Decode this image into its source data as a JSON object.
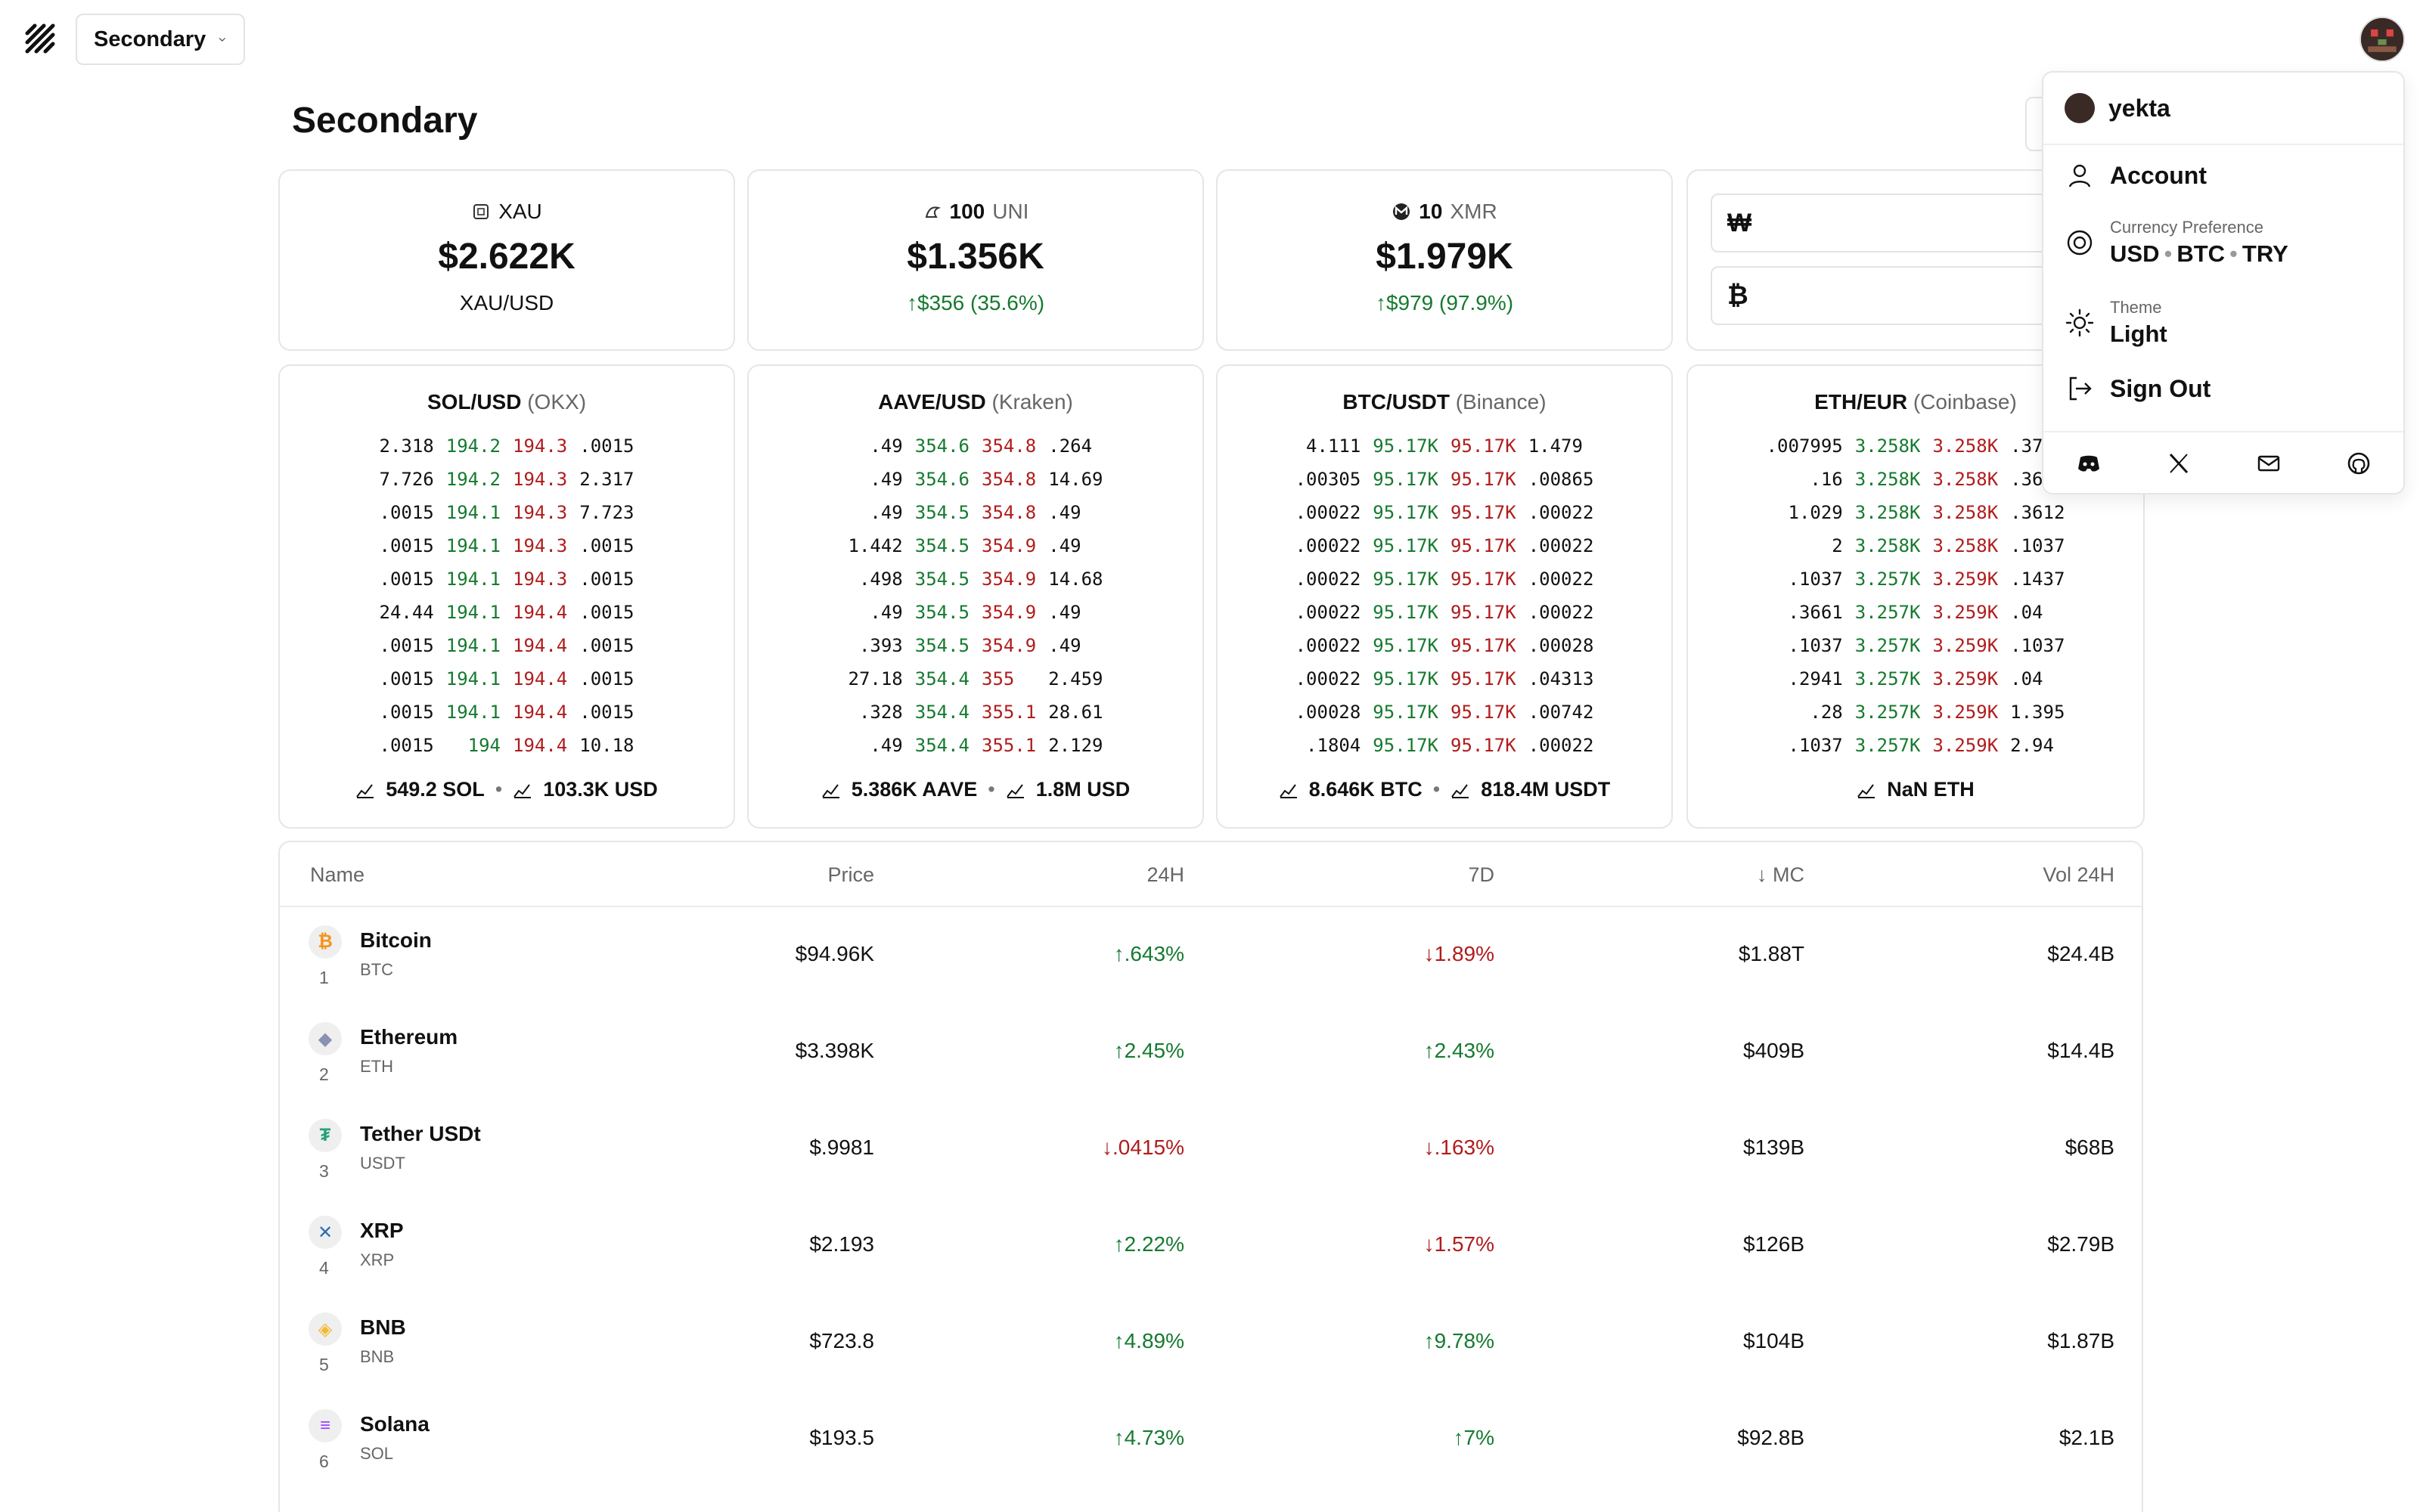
{
  "header": {
    "workspace": "Secondary"
  },
  "page": {
    "title": "Secondary"
  },
  "summary": [
    {
      "amount": "",
      "asset": "XAU",
      "value": "$2.622K",
      "sub": "XAU/USD",
      "change": "",
      "icon": "gold-icon"
    },
    {
      "amount": "100",
      "asset": "UNI",
      "value": "$1.356K",
      "sub": "",
      "change": "$356 (35.6%)",
      "icon": "uniswap-icon"
    },
    {
      "amount": "10",
      "asset": "XMR",
      "value": "$1.979K",
      "sub": "",
      "change": "$979 (97.9%)",
      "icon": "monero-icon"
    }
  ],
  "currency_inputs": [
    {
      "symbol": "₩"
    },
    {
      "symbol": "₿"
    }
  ],
  "orderbooks": [
    {
      "pair": "SOL/USD",
      "exchange": "(OKX)",
      "rows": [
        [
          "2.318",
          "194.2",
          "194.3",
          ".0015"
        ],
        [
          "7.726",
          "194.2",
          "194.3",
          "2.317"
        ],
        [
          ".0015",
          "194.1",
          "194.3",
          "7.723"
        ],
        [
          ".0015",
          "194.1",
          "194.3",
          ".0015"
        ],
        [
          ".0015",
          "194.1",
          "194.3",
          ".0015"
        ],
        [
          "24.44",
          "194.1",
          "194.4",
          ".0015"
        ],
        [
          ".0015",
          "194.1",
          "194.4",
          ".0015"
        ],
        [
          ".0015",
          "194.1",
          "194.4",
          ".0015"
        ],
        [
          ".0015",
          "194.1",
          "194.4",
          ".0015"
        ],
        [
          ".0015",
          "194",
          "194.4",
          "10.18"
        ]
      ],
      "vol_base": "549.2 SOL",
      "vol_quote": "103.3K USD"
    },
    {
      "pair": "AAVE/USD",
      "exchange": "(Kraken)",
      "rows": [
        [
          ".49",
          "354.6",
          "354.8",
          ".264"
        ],
        [
          ".49",
          "354.6",
          "354.8",
          "14.69"
        ],
        [
          ".49",
          "354.5",
          "354.8",
          ".49"
        ],
        [
          "1.442",
          "354.5",
          "354.9",
          ".49"
        ],
        [
          ".498",
          "354.5",
          "354.9",
          "14.68"
        ],
        [
          ".49",
          "354.5",
          "354.9",
          ".49"
        ],
        [
          ".393",
          "354.5",
          "354.9",
          ".49"
        ],
        [
          "27.18",
          "354.4",
          "355",
          "2.459"
        ],
        [
          ".328",
          "354.4",
          "355.1",
          "28.61"
        ],
        [
          ".49",
          "354.4",
          "355.1",
          "2.129"
        ]
      ],
      "vol_base": "5.386K AAVE",
      "vol_quote": "1.8M USD"
    },
    {
      "pair": "BTC/USDT",
      "exchange": "(Binance)",
      "rows": [
        [
          "4.111",
          "95.17K",
          "95.17K",
          "1.479"
        ],
        [
          ".00305",
          "95.17K",
          "95.17K",
          ".00865"
        ],
        [
          ".00022",
          "95.17K",
          "95.17K",
          ".00022"
        ],
        [
          ".00022",
          "95.17K",
          "95.17K",
          ".00022"
        ],
        [
          ".00022",
          "95.17K",
          "95.17K",
          ".00022"
        ],
        [
          ".00022",
          "95.17K",
          "95.17K",
          ".00022"
        ],
        [
          ".00022",
          "95.17K",
          "95.17K",
          ".00028"
        ],
        [
          ".00022",
          "95.17K",
          "95.17K",
          ".04313"
        ],
        [
          ".00028",
          "95.17K",
          "95.17K",
          ".00742"
        ],
        [
          ".1804",
          "95.17K",
          "95.17K",
          ".00022"
        ]
      ],
      "vol_base": "8.646K BTC",
      "vol_quote": "818.4M USDT"
    },
    {
      "pair": "ETH/EUR",
      "exchange": "(Coinbase)",
      "rows": [
        [
          ".007995",
          "3.258K",
          "3.258K",
          ".37"
        ],
        [
          ".16",
          "3.258K",
          "3.258K",
          ".36"
        ],
        [
          "1.029",
          "3.258K",
          "3.258K",
          ".3612"
        ],
        [
          "2",
          "3.258K",
          "3.258K",
          ".1037"
        ],
        [
          ".1037",
          "3.257K",
          "3.259K",
          ".1437"
        ],
        [
          ".3661",
          "3.257K",
          "3.259K",
          ".04"
        ],
        [
          ".1037",
          "3.257K",
          "3.259K",
          ".1037"
        ],
        [
          ".2941",
          "3.257K",
          "3.259K",
          ".04"
        ],
        [
          ".28",
          "3.257K",
          "3.259K",
          "1.395"
        ],
        [
          ".1037",
          "3.257K",
          "3.259K",
          "2.94"
        ]
      ],
      "vol_base": "NaN ETH",
      "vol_quote": ""
    }
  ],
  "market": {
    "headers": {
      "name": "Name",
      "price": "Price",
      "h24": "24H",
      "d7": "7D",
      "mc": "MC",
      "vol": "Vol 24H"
    },
    "rows": [
      {
        "rank": "1",
        "name": "Bitcoin",
        "symbol": "BTC",
        "price": "$94.96K",
        "h24": ".643%",
        "h24_up": true,
        "d7": "1.89%",
        "d7_up": false,
        "mc": "$1.88T",
        "vol": "$24.4B",
        "color": "#f7931a",
        "glyph": "₿"
      },
      {
        "rank": "2",
        "name": "Ethereum",
        "symbol": "ETH",
        "price": "$3.398K",
        "h24": "2.45%",
        "h24_up": true,
        "d7": "2.43%",
        "d7_up": true,
        "mc": "$409B",
        "vol": "$14.4B",
        "color": "#8a92b2",
        "glyph": "◆"
      },
      {
        "rank": "3",
        "name": "Tether USDt",
        "symbol": "USDT",
        "price": "$.9981",
        "h24": ".0415%",
        "h24_up": false,
        "d7": ".163%",
        "d7_up": false,
        "mc": "$139B",
        "vol": "$68B",
        "color": "#26a17b",
        "glyph": "₮"
      },
      {
        "rank": "4",
        "name": "XRP",
        "symbol": "XRP",
        "price": "$2.193",
        "h24": "2.22%",
        "h24_up": true,
        "d7": "1.57%",
        "d7_up": false,
        "mc": "$126B",
        "vol": "$2.79B",
        "color": "#2b6fb5",
        "glyph": "✕"
      },
      {
        "rank": "5",
        "name": "BNB",
        "symbol": "BNB",
        "price": "$723.8",
        "h24": "4.89%",
        "h24_up": true,
        "d7": "9.78%",
        "d7_up": true,
        "mc": "$104B",
        "vol": "$1.87B",
        "color": "#f3ba2f",
        "glyph": "◈"
      },
      {
        "rank": "6",
        "name": "Solana",
        "symbol": "SOL",
        "price": "$193.5",
        "h24": "4.73%",
        "h24_up": true,
        "d7": "7%",
        "d7_up": true,
        "mc": "$92.8B",
        "vol": "$2.1B",
        "color": "#9945ff",
        "glyph": "≡"
      }
    ]
  },
  "menu": {
    "username": "yekta",
    "account": "Account",
    "currency_label": "Currency Preference",
    "currencies": [
      "USD",
      "BTC",
      "TRY"
    ],
    "theme_label": "Theme",
    "theme_value": "Light",
    "signout": "Sign Out",
    "socials": [
      "discord-icon",
      "x-icon",
      "mail-icon",
      "github-icon"
    ]
  },
  "colors": {
    "up": "#157a2f",
    "down": "#b01c1c"
  }
}
